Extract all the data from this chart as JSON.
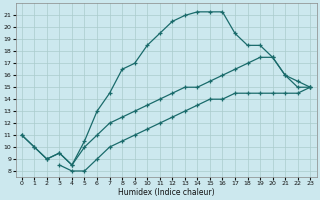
{
  "xlabel": "Humidex (Indice chaleur)",
  "xlim": [
    -0.5,
    23.5
  ],
  "ylim": [
    7.5,
    22.0
  ],
  "yticks": [
    8,
    9,
    10,
    11,
    12,
    13,
    14,
    15,
    16,
    17,
    18,
    19,
    20,
    21
  ],
  "xticks": [
    0,
    1,
    2,
    3,
    4,
    5,
    6,
    7,
    8,
    9,
    10,
    11,
    12,
    13,
    14,
    15,
    16,
    17,
    18,
    19,
    20,
    21,
    22,
    23
  ],
  "bg_color": "#cce8ee",
  "grid_color": "#aacccc",
  "line_color": "#1a6b6b",
  "curve1_x": [
    0,
    1,
    2,
    3,
    4,
    5,
    6,
    7,
    8,
    9,
    10,
    11,
    12,
    13,
    14,
    15,
    16,
    17,
    18,
    19,
    20,
    21,
    22,
    23
  ],
  "curve1_y": [
    11.0,
    10.0,
    9.0,
    9.5,
    8.5,
    10.5,
    13.0,
    14.5,
    16.5,
    17.0,
    18.5,
    19.5,
    20.5,
    21.0,
    21.3,
    21.3,
    21.3,
    19.5,
    18.5,
    18.5,
    17.5,
    16.0,
    15.0,
    15.0
  ],
  "curve2_x": [
    0,
    1,
    2,
    3,
    4,
    5,
    6,
    7,
    8,
    9,
    10,
    11,
    12,
    13,
    14,
    15,
    16,
    17,
    18,
    19,
    20,
    21,
    22,
    23
  ],
  "curve2_y": [
    11.0,
    10.0,
    9.0,
    9.5,
    8.5,
    10.0,
    11.0,
    12.0,
    12.5,
    13.0,
    13.5,
    14.0,
    14.5,
    15.0,
    15.0,
    15.5,
    16.0,
    16.5,
    17.0,
    17.5,
    17.5,
    16.0,
    15.5,
    15.0
  ],
  "curve3_x": [
    3,
    4,
    5,
    6,
    7,
    8,
    9,
    10,
    11,
    12,
    13,
    14,
    15,
    16,
    17,
    18,
    19,
    20,
    21,
    22,
    23
  ],
  "curve3_y": [
    8.5,
    8.0,
    8.0,
    9.0,
    10.0,
    10.5,
    11.0,
    11.5,
    12.0,
    12.5,
    13.0,
    13.5,
    14.0,
    14.0,
    14.5,
    14.5,
    14.5,
    14.5,
    14.5,
    14.5,
    15.0
  ]
}
